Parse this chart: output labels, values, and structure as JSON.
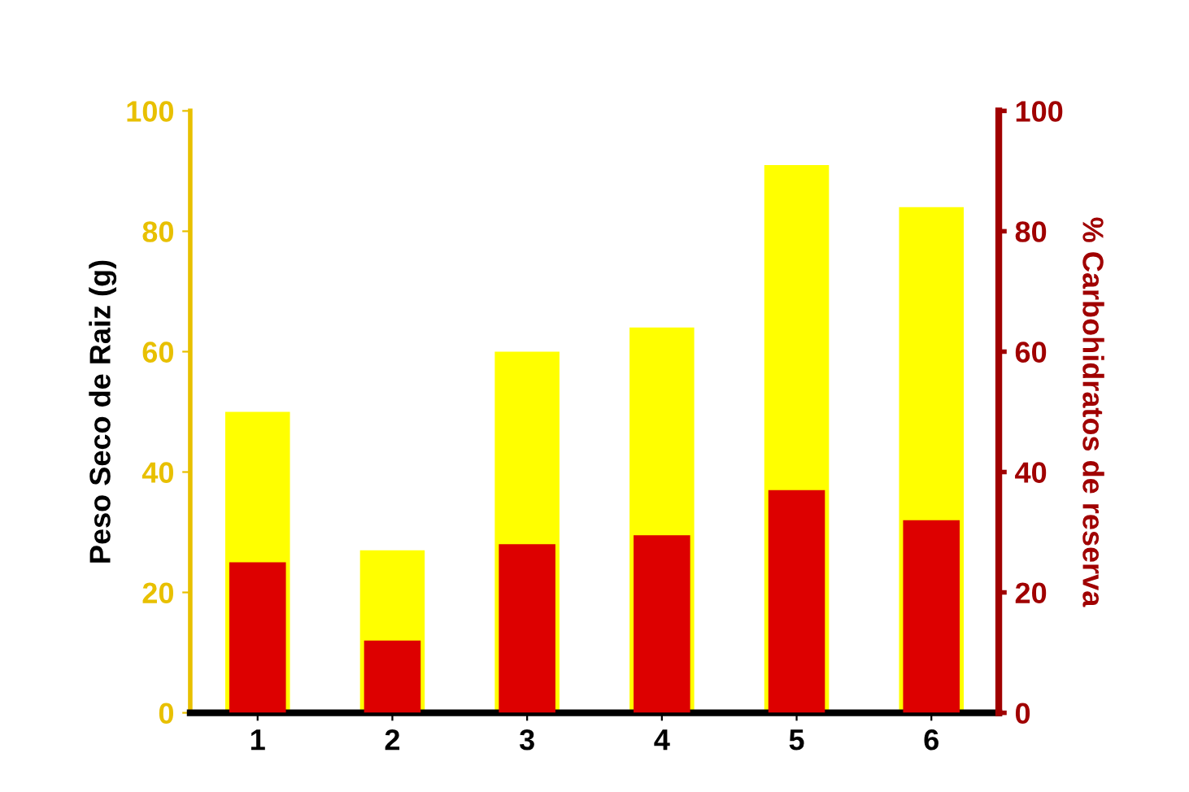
{
  "chart_data": {
    "type": "bar",
    "categories": [
      "1",
      "2",
      "3",
      "4",
      "5",
      "6"
    ],
    "ylabel": "Peso Seco de Raiz (g)",
    "y2label": "% Carbohidratos de reserva",
    "series": [
      {
        "color": "#ffff00",
        "values": [
          50,
          27,
          60,
          64,
          91,
          84
        ]
      },
      {
        "color": "#dd0000",
        "axis": "y2",
        "values": [
          25,
          12,
          28,
          29.5,
          37,
          32
        ]
      }
    ],
    "ylim": [
      0,
      100
    ],
    "yticks": [
      0,
      20,
      40,
      60,
      80,
      100
    ],
    "y2lim": [
      0,
      100
    ],
    "y2ticks": [
      0,
      20,
      40,
      60,
      80,
      100
    ],
    "grid": false,
    "legend": false
  }
}
